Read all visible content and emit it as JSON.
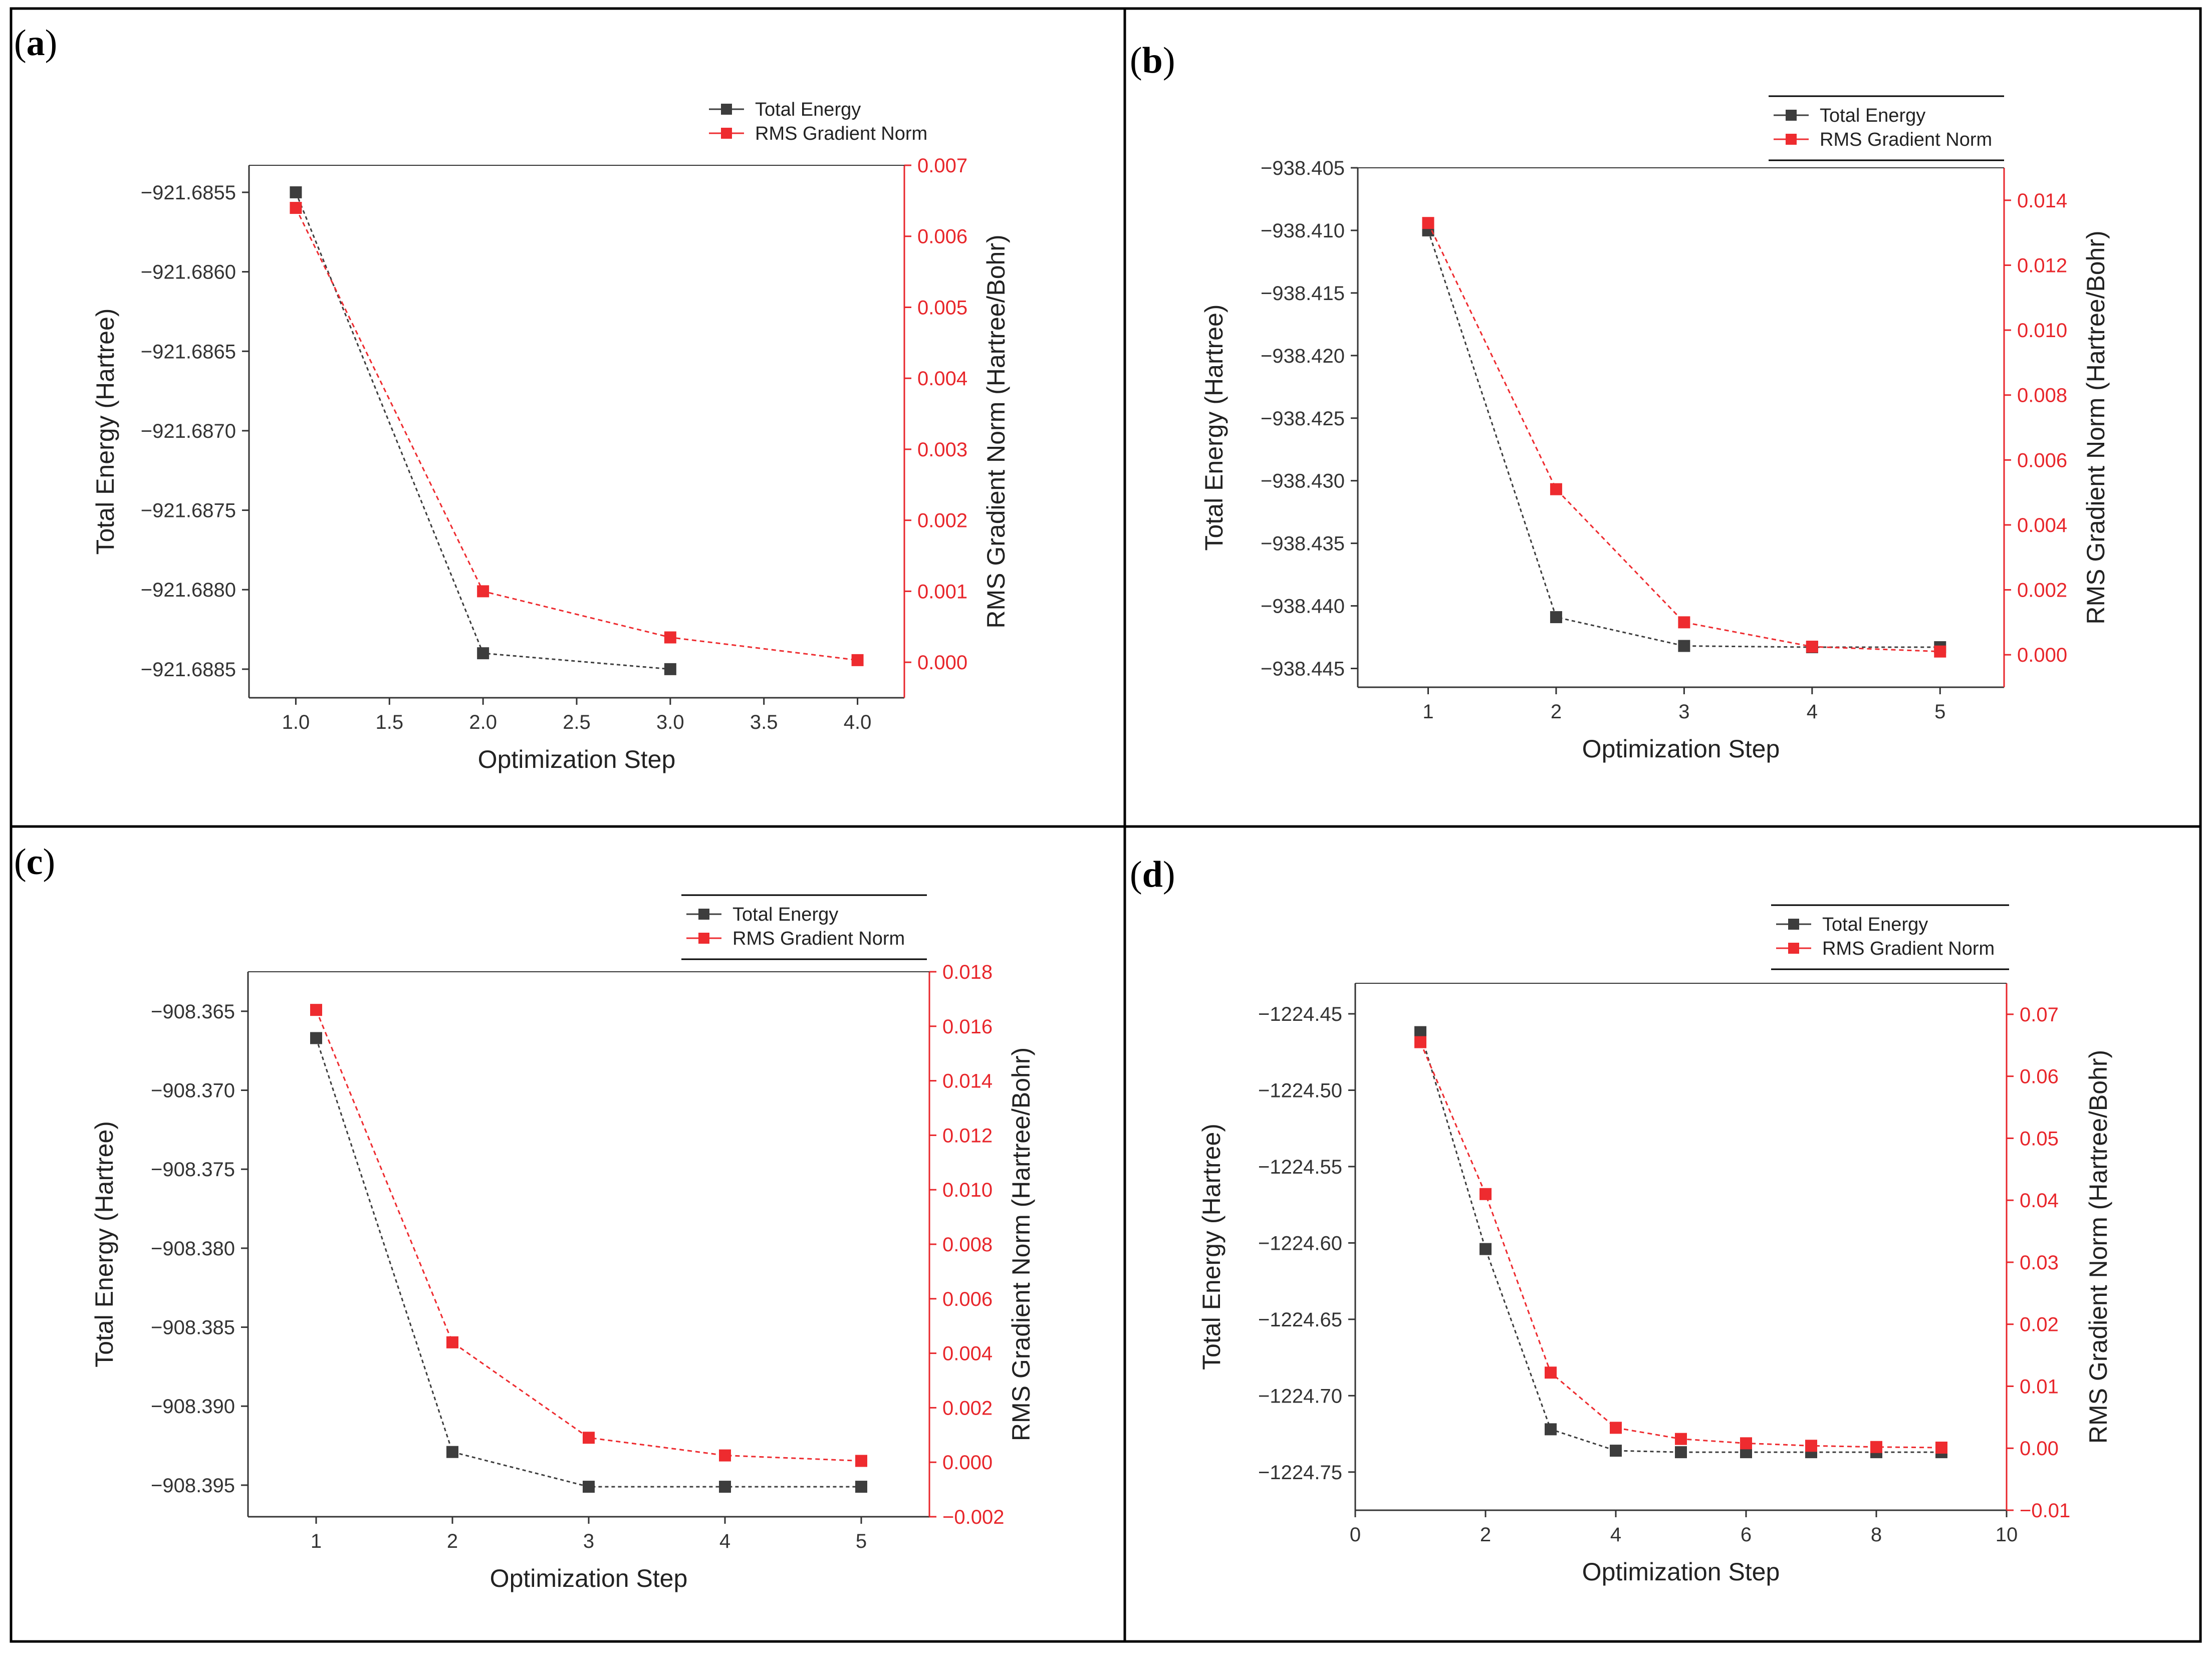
{
  "figure": {
    "colors": {
      "energy": "#3d3d3d",
      "gradient": "#ee2b2f",
      "right_axis": "#e8262b",
      "frame": "#000000"
    }
  },
  "chart_data": [
    {
      "id": "a",
      "panel_label": "(a)",
      "label_letter": "a",
      "type": "line",
      "xlabel": "Optimization Step",
      "ylabel": "Total Energy (Hartree)",
      "y2label": "RMS Gradient Norm (Hartree/Bohr)",
      "xlim": [
        0.75,
        4.25
      ],
      "ylim": [
        -921.68868,
        -921.68533
      ],
      "y2lim": [
        -0.0005,
        0.007
      ],
      "xticks": [
        1.0,
        1.5,
        2.0,
        2.5,
        3.0,
        3.5,
        4.0
      ],
      "xtick_labels": [
        "1.0",
        "1.5",
        "2.0",
        "2.5",
        "3.0",
        "3.5",
        "4.0"
      ],
      "yticks": [
        -921.6855,
        -921.686,
        -921.6865,
        -921.687,
        -921.6875,
        -921.688,
        -921.6885
      ],
      "ytick_labels": [
        "-921.6855",
        "-921.6860",
        "-921.6865",
        "-921.6870",
        "-921.6875",
        "-921.6880",
        "-921.6885"
      ],
      "y2ticks": [
        0.0,
        0.001,
        0.002,
        0.003,
        0.004,
        0.005,
        0.006,
        0.007
      ],
      "y2tick_labels": [
        "0.000",
        "0.001",
        "0.002",
        "0.003",
        "0.004",
        "0.005",
        "0.006",
        "0.007"
      ],
      "legend": {
        "position": "top-right",
        "labels": [
          "Total Energy",
          "RMS Gradient Norm"
        ]
      },
      "series": [
        {
          "name": "Total Energy",
          "axis": "left",
          "x": [
            1,
            2,
            3
          ],
          "values": [
            -921.6855,
            -921.6884,
            -921.6885
          ]
        },
        {
          "name": "RMS Gradient Norm",
          "axis": "right",
          "x": [
            1,
            2,
            3,
            4
          ],
          "values": [
            0.0064,
            0.001,
            0.00035,
            3e-05
          ]
        }
      ]
    },
    {
      "id": "b",
      "panel_label": "(b)",
      "label_letter": "b",
      "type": "line",
      "xlabel": "Optimization Step",
      "ylabel": "Total Energy (Hartree)",
      "y2label": "RMS Gradient Norm (Hartree/Bohr)",
      "xlim": [
        0.45,
        5.5
      ],
      "ylim": [
        -938.4465,
        -938.405
      ],
      "y2lim": [
        -0.001,
        0.015
      ],
      "xticks": [
        1,
        2,
        3,
        4,
        5
      ],
      "xtick_labels": [
        "1",
        "2",
        "3",
        "4",
        "5"
      ],
      "yticks": [
        -938.405,
        -938.41,
        -938.415,
        -938.42,
        -938.425,
        -938.43,
        -938.435,
        -938.44,
        -938.445
      ],
      "ytick_labels": [
        "-938.405",
        "-938.410",
        "-938.415",
        "-938.420",
        "-938.425",
        "-938.430",
        "-938.435",
        "-938.440",
        "-938.445"
      ],
      "y2ticks": [
        0.0,
        0.002,
        0.004,
        0.006,
        0.008,
        0.01,
        0.012,
        0.014
      ],
      "y2tick_labels": [
        "0.000",
        "0.002",
        "0.004",
        "0.006",
        "0.008",
        "0.010",
        "0.012",
        "0.014"
      ],
      "legend": {
        "position": "top-right",
        "labels": [
          "Total Energy",
          "RMS Gradient Norm"
        ]
      },
      "series": [
        {
          "name": "Total Energy",
          "axis": "left",
          "x": [
            1,
            2,
            3,
            4,
            5
          ],
          "values": [
            -938.41,
            -938.4409,
            -938.4432,
            -938.4433,
            -938.4433
          ]
        },
        {
          "name": "RMS Gradient Norm",
          "axis": "right",
          "x": [
            1,
            2,
            3,
            4,
            5
          ],
          "values": [
            0.0133,
            0.0051,
            0.001,
            0.00025,
            0.0001
          ]
        }
      ]
    },
    {
      "id": "c",
      "panel_label": "(c)",
      "label_letter": "c",
      "type": "line",
      "xlabel": "Optimization Step",
      "ylabel": "Total Energy (Hartree)",
      "y2label": "RMS Gradient Norm (Hartree/Bohr)",
      "xlim": [
        0.5,
        5.5
      ],
      "ylim": [
        -908.397,
        -908.3625
      ],
      "y2lim": [
        -0.002,
        0.018
      ],
      "xticks": [
        1,
        2,
        3,
        4,
        5
      ],
      "xtick_labels": [
        "1",
        "2",
        "3",
        "4",
        "5"
      ],
      "yticks": [
        -908.365,
        -908.37,
        -908.375,
        -908.38,
        -908.385,
        -908.39,
        -908.395
      ],
      "ytick_labels": [
        "-908.365",
        "-908.370",
        "-908.375",
        "-908.380",
        "-908.385",
        "-908.390",
        "-908.395"
      ],
      "y2ticks": [
        -0.002,
        0.0,
        0.002,
        0.004,
        0.006,
        0.008,
        0.01,
        0.012,
        0.014,
        0.016,
        0.018
      ],
      "y2tick_labels": [
        "-0.002",
        "0.000",
        "0.002",
        "0.004",
        "0.006",
        "0.008",
        "0.010",
        "0.012",
        "0.014",
        "0.016",
        "0.018"
      ],
      "legend": {
        "position": "top-right",
        "labels": [
          "Total Energy",
          "RMS Gradient Norm"
        ]
      },
      "series": [
        {
          "name": "Total Energy",
          "axis": "left",
          "x": [
            1,
            2,
            3,
            4,
            5
          ],
          "values": [
            -908.3667,
            -908.3929,
            -908.3951,
            -908.3951,
            -908.3951
          ]
        },
        {
          "name": "RMS Gradient Norm",
          "axis": "right",
          "x": [
            1,
            2,
            3,
            4,
            5
          ],
          "values": [
            0.0166,
            0.0044,
            0.0009,
            0.00025,
            5e-05
          ]
        }
      ]
    },
    {
      "id": "d",
      "panel_label": "(d)",
      "label_letter": "d",
      "type": "line",
      "xlabel": "Optimization Step",
      "ylabel": "Total Energy (Hartree)",
      "y2label": "RMS Gradient Norm (Hartree/Bohr)",
      "xlim": [
        0,
        10
      ],
      "ylim": [
        -1224.775,
        -1224.43
      ],
      "y2lim": [
        -0.01,
        0.075
      ],
      "xticks": [
        0,
        2,
        4,
        6,
        8,
        10
      ],
      "xtick_labels": [
        "0",
        "2",
        "4",
        "6",
        "8",
        "10"
      ],
      "yticks": [
        -1224.45,
        -1224.5,
        -1224.55,
        -1224.6,
        -1224.65,
        -1224.7,
        -1224.75
      ],
      "ytick_labels": [
        "-1224.45",
        "-1224.50",
        "-1224.55",
        "-1224.60",
        "-1224.65",
        "-1224.70",
        "-1224.75"
      ],
      "y2ticks": [
        -0.01,
        0.0,
        0.01,
        0.02,
        0.03,
        0.04,
        0.05,
        0.06,
        0.07
      ],
      "y2tick_labels": [
        "-0.01",
        "0.00",
        "0.01",
        "0.02",
        "0.03",
        "0.04",
        "0.05",
        "0.06",
        "0.07"
      ],
      "legend": {
        "position": "top-right",
        "labels": [
          "Total Energy",
          "RMS Gradient Norm"
        ]
      },
      "series": [
        {
          "name": "Total Energy",
          "axis": "left",
          "x": [
            1,
            2,
            3,
            4,
            5,
            6,
            7,
            8,
            9
          ],
          "values": [
            -1224.462,
            -1224.604,
            -1224.722,
            -1224.736,
            -1224.737,
            -1224.737,
            -1224.737,
            -1224.737,
            -1224.737
          ]
        },
        {
          "name": "RMS Gradient Norm",
          "axis": "right",
          "x": [
            1,
            2,
            3,
            4,
            5,
            6,
            7,
            8,
            9
          ],
          "values": [
            0.0655,
            0.041,
            0.0122,
            0.0033,
            0.0015,
            0.0008,
            0.0004,
            0.0002,
            0.0001
          ]
        }
      ]
    }
  ]
}
